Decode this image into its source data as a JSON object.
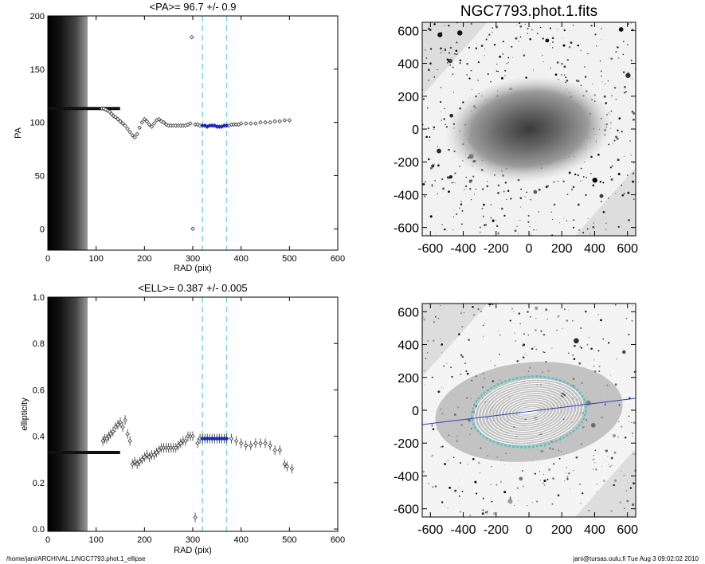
{
  "chart_data": [
    {
      "type": "scatter",
      "title": "<PA>=  96.7 +/-   0.9",
      "xlabel": "RAD (pix)",
      "ylabel": "PA",
      "xlim": [
        0,
        600
      ],
      "ylim": [
        -20,
        200
      ],
      "xticks": [
        0,
        100,
        200,
        300,
        400,
        500,
        600
      ],
      "yticks": [
        0,
        50,
        100,
        150,
        200
      ],
      "grid": false,
      "shaded_band_x": [
        0,
        110
      ],
      "vlines": [
        320,
        370
      ],
      "points": [
        [
          112,
          113
        ],
        [
          116,
          113
        ],
        [
          120,
          112
        ],
        [
          124,
          111
        ],
        [
          128,
          110
        ],
        [
          132,
          108
        ],
        [
          136,
          106
        ],
        [
          140,
          105
        ],
        [
          145,
          103
        ],
        [
          150,
          101
        ],
        [
          155,
          99
        ],
        [
          160,
          97
        ],
        [
          165,
          94
        ],
        [
          170,
          91
        ],
        [
          175,
          88
        ],
        [
          180,
          86
        ],
        [
          185,
          89
        ],
        [
          190,
          95
        ],
        [
          195,
          100
        ],
        [
          200,
          103
        ],
        [
          205,
          101
        ],
        [
          210,
          98
        ],
        [
          215,
          96
        ],
        [
          220,
          99
        ],
        [
          225,
          102
        ],
        [
          230,
          103
        ],
        [
          235,
          101
        ],
        [
          240,
          100
        ],
        [
          245,
          98
        ],
        [
          250,
          97
        ],
        [
          255,
          97
        ],
        [
          260,
          97
        ],
        [
          265,
          97
        ],
        [
          270,
          97
        ],
        [
          275,
          97
        ],
        [
          280,
          97
        ],
        [
          285,
          97
        ],
        [
          290,
          98
        ],
        [
          295,
          99
        ],
        [
          298,
          180
        ],
        [
          300,
          0
        ],
        [
          305,
          98
        ],
        [
          310,
          98
        ],
        [
          315,
          97
        ],
        [
          320,
          97
        ],
        [
          325,
          97
        ],
        [
          330,
          96
        ],
        [
          335,
          97
        ],
        [
          340,
          97
        ],
        [
          345,
          97
        ],
        [
          350,
          96
        ],
        [
          355,
          96
        ],
        [
          360,
          96
        ],
        [
          365,
          97
        ],
        [
          370,
          97
        ],
        [
          375,
          97
        ],
        [
          380,
          98
        ],
        [
          385,
          98
        ],
        [
          390,
          98
        ],
        [
          395,
          98
        ],
        [
          400,
          99
        ],
        [
          410,
          99
        ],
        [
          420,
          99
        ],
        [
          430,
          99
        ],
        [
          440,
          100
        ],
        [
          450,
          100
        ],
        [
          460,
          100
        ],
        [
          470,
          101
        ],
        [
          480,
          101
        ],
        [
          490,
          102
        ],
        [
          500,
          102
        ]
      ],
      "highlight_points": [
        [
          320,
          97
        ],
        [
          325,
          97
        ],
        [
          330,
          96
        ],
        [
          335,
          97
        ],
        [
          340,
          97
        ],
        [
          345,
          97
        ],
        [
          350,
          96
        ],
        [
          355,
          96
        ],
        [
          360,
          96
        ],
        [
          365,
          97
        ],
        [
          370,
          97
        ]
      ],
      "inner_level": 113
    },
    {
      "type": "scatter",
      "title": "<ELL>= 0.387 +/-  0.005",
      "xlabel": "RAD (pix)",
      "ylabel": "ellipticity",
      "xlim": [
        0,
        600
      ],
      "ylim": [
        -0.01,
        1.0
      ],
      "xticks": [
        0,
        100,
        200,
        300,
        400,
        500,
        600
      ],
      "yticks": [
        0.0,
        0.2,
        0.4,
        0.6,
        0.8,
        1.0
      ],
      "grid": false,
      "shaded_band_x": [
        0,
        110
      ],
      "vlines": [
        320,
        370
      ],
      "points": [
        [
          114,
          0.38
        ],
        [
          118,
          0.39
        ],
        [
          122,
          0.39
        ],
        [
          126,
          0.4
        ],
        [
          130,
          0.41
        ],
        [
          135,
          0.42
        ],
        [
          140,
          0.44
        ],
        [
          145,
          0.45
        ],
        [
          150,
          0.46
        ],
        [
          155,
          0.44
        ],
        [
          160,
          0.47
        ],
        [
          165,
          0.41
        ],
        [
          170,
          0.38
        ],
        [
          175,
          0.28
        ],
        [
          180,
          0.29
        ],
        [
          185,
          0.28
        ],
        [
          190,
          0.29
        ],
        [
          195,
          0.3
        ],
        [
          200,
          0.31
        ],
        [
          205,
          0.32
        ],
        [
          210,
          0.31
        ],
        [
          215,
          0.32
        ],
        [
          220,
          0.32
        ],
        [
          225,
          0.33
        ],
        [
          230,
          0.34
        ],
        [
          235,
          0.35
        ],
        [
          240,
          0.35
        ],
        [
          245,
          0.35
        ],
        [
          250,
          0.35
        ],
        [
          255,
          0.35
        ],
        [
          260,
          0.35
        ],
        [
          265,
          0.35
        ],
        [
          270,
          0.36
        ],
        [
          275,
          0.37
        ],
        [
          280,
          0.38
        ],
        [
          285,
          0.38
        ],
        [
          290,
          0.4
        ],
        [
          295,
          0.4
        ],
        [
          300,
          0.4
        ],
        [
          305,
          0.05
        ],
        [
          310,
          0.37
        ],
        [
          315,
          0.39
        ],
        [
          320,
          0.39
        ],
        [
          325,
          0.39
        ],
        [
          330,
          0.39
        ],
        [
          335,
          0.39
        ],
        [
          340,
          0.39
        ],
        [
          345,
          0.39
        ],
        [
          350,
          0.39
        ],
        [
          355,
          0.39
        ],
        [
          360,
          0.39
        ],
        [
          365,
          0.39
        ],
        [
          370,
          0.39
        ],
        [
          380,
          0.39
        ],
        [
          390,
          0.38
        ],
        [
          400,
          0.37
        ],
        [
          410,
          0.36
        ],
        [
          420,
          0.36
        ],
        [
          430,
          0.37
        ],
        [
          440,
          0.37
        ],
        [
          450,
          0.37
        ],
        [
          460,
          0.36
        ],
        [
          470,
          0.34
        ],
        [
          480,
          0.34
        ],
        [
          490,
          0.28
        ],
        [
          495,
          0.27
        ],
        [
          505,
          0.26
        ]
      ],
      "highlight_points": [
        [
          320,
          0.39
        ],
        [
          325,
          0.39
        ],
        [
          330,
          0.39
        ],
        [
          335,
          0.39
        ],
        [
          340,
          0.39
        ],
        [
          345,
          0.39
        ],
        [
          350,
          0.39
        ],
        [
          355,
          0.39
        ],
        [
          360,
          0.39
        ],
        [
          365,
          0.39
        ],
        [
          370,
          0.39
        ]
      ],
      "inner_level": 0.33
    },
    {
      "type": "heatmap",
      "title": "NGC7793.phot.1.fits",
      "xlim": [
        -650,
        650
      ],
      "ylim": [
        -650,
        650
      ],
      "xticks": [
        -600,
        -400,
        -200,
        0,
        200,
        400,
        600
      ],
      "yticks": [
        -600,
        -400,
        -200,
        0,
        200,
        400,
        600
      ]
    },
    {
      "type": "heatmap",
      "title": "",
      "xlim": [
        -650,
        650
      ],
      "ylim": [
        -650,
        650
      ],
      "xticks": [
        -600,
        -400,
        -200,
        0,
        200,
        400,
        600
      ],
      "yticks": [
        -600,
        -400,
        -200,
        0,
        200,
        400,
        600
      ]
    }
  ],
  "footer": {
    "left": "/home/jani/ARCHIVAL.1/NGC7793.phot.1_ellipse",
    "right": "jani@tursas.oulu.fi  Tue Aug  3 09:02:02 2010"
  },
  "colors": {
    "points": "#333333",
    "highlight": "#1a2bb5",
    "vline": "#7fd8ec",
    "image_bg": "#dddddd",
    "pa_line": "#3340b0",
    "ellipse_teal": "#4fc5bf"
  }
}
